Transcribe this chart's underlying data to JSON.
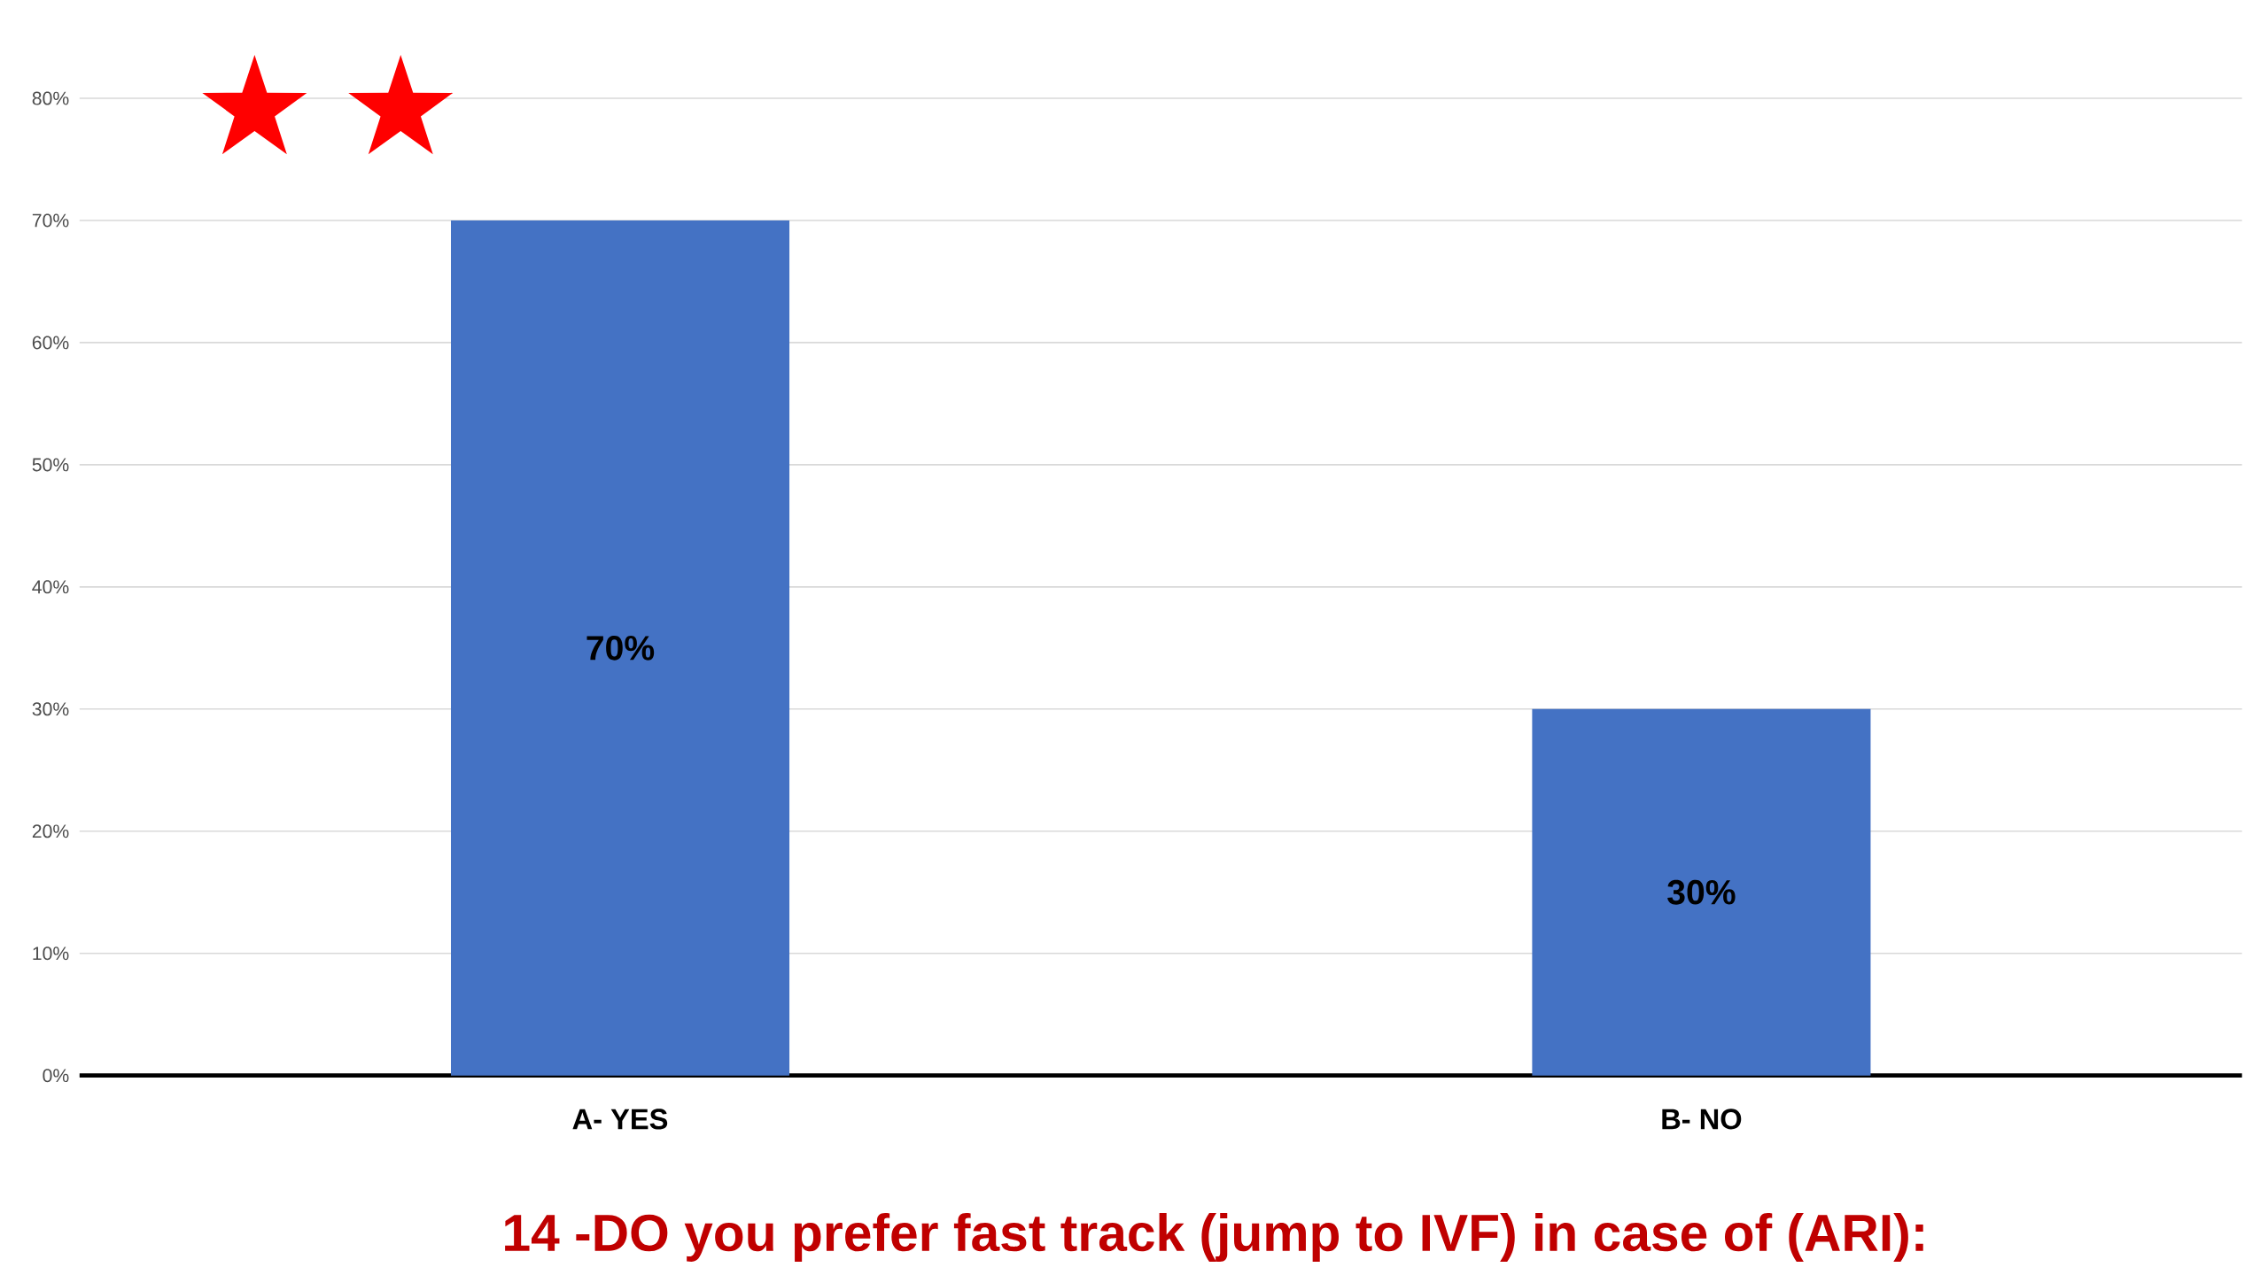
{
  "chart_data": {
    "type": "bar",
    "title": "14 -DO you prefer fast track (jump to IVF) in case of (ARI):",
    "categories": [
      "A- YES",
      "B- NO"
    ],
    "values": [
      70,
      30
    ],
    "value_labels": [
      "70%",
      "30%"
    ],
    "color": "#4472c4",
    "ylim": [
      0,
      80
    ],
    "yticks": [
      {
        "value": 0,
        "label": "0%"
      },
      {
        "value": 10,
        "label": "10%"
      },
      {
        "value": 20,
        "label": "20%"
      },
      {
        "value": 30,
        "label": "30%"
      },
      {
        "value": 40,
        "label": "40%"
      },
      {
        "value": 50,
        "label": "50%"
      },
      {
        "value": 60,
        "label": "60%"
      },
      {
        "value": 70,
        "label": "70%"
      },
      {
        "value": 80,
        "label": "80%"
      }
    ],
    "grid": "y",
    "legend": false
  }
}
